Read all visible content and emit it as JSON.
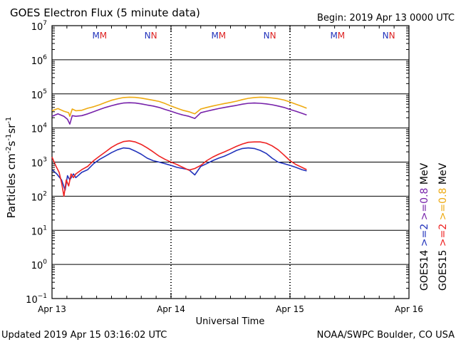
{
  "chart_data": {
    "type": "line",
    "title": "GOES Electron Flux (5 minute data)",
    "begin": "Begin: 2019 Apr 13 0000 UTC",
    "xlabel": "Universal Time",
    "ylabel_parts": [
      "Particles cm",
      "-2",
      "s",
      "-1",
      "sr",
      "-1"
    ],
    "footer_left": "Updated 2019 Apr 15 03:16:02 UTC",
    "footer_right": "NOAA/SWPC Boulder, CO USA",
    "y_scale": "log",
    "ylim": [
      0.1,
      10000000
    ],
    "y_ticks": [
      {
        "base": "10",
        "exp": "7",
        "value": 10000000
      },
      {
        "base": "10",
        "exp": "6",
        "value": 1000000
      },
      {
        "base": "10",
        "exp": "5",
        "value": 100000
      },
      {
        "base": "10",
        "exp": "4",
        "value": 10000
      },
      {
        "base": "10",
        "exp": "3",
        "value": 1000
      },
      {
        "base": "10",
        "exp": "2",
        "value": 100
      },
      {
        "base": "10",
        "exp": "1",
        "value": 10
      },
      {
        "base": "10",
        "exp": "0",
        "value": 1
      },
      {
        "base": "10",
        "exp": "−1",
        "value": 0.1
      }
    ],
    "x_range_days": [
      0,
      3
    ],
    "x_ticks": [
      {
        "label": "Apr 13",
        "day": 0
      },
      {
        "label": "Apr 14",
        "day": 1
      },
      {
        "label": "Apr 15",
        "day": 2
      },
      {
        "label": "Apr 16",
        "day": 3
      }
    ],
    "threshold": 1000,
    "day_markers": [
      {
        "day": 0.4,
        "letters": [
          {
            "text": "M",
            "color": "#2233bb"
          },
          {
            "text": "M",
            "color": "#dd2222"
          }
        ]
      },
      {
        "day": 0.83,
        "letters": [
          {
            "text": "N",
            "color": "#2233bb"
          },
          {
            "text": "N",
            "color": "#dd2222"
          }
        ]
      },
      {
        "day": 1.4,
        "letters": [
          {
            "text": "M",
            "color": "#2233bb"
          },
          {
            "text": "M",
            "color": "#dd2222"
          }
        ]
      },
      {
        "day": 1.83,
        "letters": [
          {
            "text": "N",
            "color": "#2233bb"
          },
          {
            "text": "N",
            "color": "#dd2222"
          }
        ]
      },
      {
        "day": 2.4,
        "letters": [
          {
            "text": "M",
            "color": "#2233bb"
          },
          {
            "text": "M",
            "color": "#dd2222"
          }
        ]
      },
      {
        "day": 2.83,
        "letters": [
          {
            "text": "N",
            "color": "#2233bb"
          },
          {
            "text": "N",
            "color": "#dd2222"
          }
        ]
      }
    ],
    "legend": [
      {
        "parts": [
          {
            "text": "GOES14",
            "color": "#000000"
          },
          {
            "text": " ",
            "color": "#000000"
          },
          {
            "text": ">=2",
            "color": "#2233bb"
          },
          {
            "text": " ",
            "color": "#000000"
          },
          {
            "text": ">=0.8",
            "color": "#7722aa"
          },
          {
            "text": " MeV",
            "color": "#000000"
          }
        ]
      },
      {
        "parts": [
          {
            "text": "GOES15",
            "color": "#000000"
          },
          {
            "text": " ",
            "color": "#000000"
          },
          {
            "text": ">=2",
            "color": "#ee2222"
          },
          {
            "text": " ",
            "color": "#000000"
          },
          {
            "text": ">=0.8",
            "color": "#eeaa11"
          },
          {
            "text": " MeV",
            "color": "#000000"
          }
        ]
      }
    ],
    "series": [
      {
        "color": "#eeaa11",
        "x": [
          0.0,
          0.05,
          0.1,
          0.14,
          0.15,
          0.17,
          0.2,
          0.25,
          0.3,
          0.35,
          0.4,
          0.45,
          0.5,
          0.55,
          0.6,
          0.65,
          0.7,
          0.75,
          0.8,
          0.85,
          0.9,
          0.95,
          1.0,
          1.05,
          1.1,
          1.15,
          1.2,
          1.25,
          1.3,
          1.35,
          1.4,
          1.45,
          1.5,
          1.55,
          1.6,
          1.65,
          1.7,
          1.75,
          1.8,
          1.85,
          1.9,
          1.95,
          2.0,
          2.05,
          2.1,
          2.14
        ],
        "y": [
          32000,
          37000,
          31000,
          28000,
          22000,
          36000,
          32000,
          33000,
          38000,
          42000,
          48000,
          56000,
          65000,
          72000,
          78000,
          80000,
          79000,
          75000,
          70000,
          65000,
          60000,
          52000,
          44000,
          38000,
          33000,
          30000,
          26000,
          36000,
          40000,
          44000,
          48000,
          52000,
          56000,
          61000,
          68000,
          74000,
          78000,
          80000,
          79000,
          76000,
          72000,
          66000,
          58000,
          50000,
          43000,
          38000
        ]
      },
      {
        "color": "#7722aa",
        "x": [
          0.0,
          0.05,
          0.1,
          0.13,
          0.15,
          0.17,
          0.2,
          0.25,
          0.3,
          0.35,
          0.4,
          0.45,
          0.5,
          0.55,
          0.6,
          0.65,
          0.7,
          0.75,
          0.8,
          0.85,
          0.9,
          0.95,
          1.0,
          1.05,
          1.1,
          1.15,
          1.2,
          1.25,
          1.3,
          1.35,
          1.4,
          1.45,
          1.5,
          1.55,
          1.6,
          1.65,
          1.7,
          1.75,
          1.8,
          1.85,
          1.9,
          1.95,
          2.0,
          2.05,
          2.1,
          2.14
        ],
        "y": [
          22000,
          26000,
          22000,
          18000,
          13000,
          23000,
          22000,
          23000,
          26000,
          30000,
          35000,
          40000,
          45000,
          50000,
          54000,
          55000,
          54000,
          51000,
          47000,
          44000,
          40000,
          35000,
          31000,
          27000,
          24000,
          22000,
          19000,
          28000,
          31000,
          34000,
          37000,
          40000,
          43000,
          46000,
          50000,
          53000,
          54000,
          53000,
          51000,
          48000,
          44000,
          40000,
          35000,
          31000,
          27000,
          24000
        ]
      },
      {
        "color": "#2233bb",
        "x": [
          0.0,
          0.04,
          0.08,
          0.11,
          0.13,
          0.15,
          0.18,
          0.2,
          0.25,
          0.3,
          0.35,
          0.4,
          0.45,
          0.5,
          0.55,
          0.6,
          0.65,
          0.7,
          0.75,
          0.8,
          0.85,
          0.9,
          0.95,
          1.0,
          1.05,
          1.1,
          1.15,
          1.2,
          1.25,
          1.3,
          1.35,
          1.4,
          1.45,
          1.5,
          1.55,
          1.6,
          1.65,
          1.7,
          1.75,
          1.8,
          1.85,
          1.9,
          1.95,
          2.0,
          2.05,
          2.1,
          2.14
        ],
        "y": [
          600,
          450,
          300,
          150,
          400,
          300,
          450,
          350,
          500,
          600,
          900,
          1200,
          1500,
          1900,
          2300,
          2600,
          2500,
          2100,
          1700,
          1300,
          1100,
          1000,
          900,
          800,
          700,
          650,
          600,
          420,
          750,
          900,
          1100,
          1300,
          1500,
          1800,
          2200,
          2500,
          2600,
          2500,
          2200,
          1800,
          1300,
          1000,
          900,
          800,
          700,
          600,
          550
        ]
      },
      {
        "color": "#ee2222",
        "x": [
          0.0,
          0.03,
          0.06,
          0.08,
          0.1,
          0.12,
          0.14,
          0.16,
          0.18,
          0.2,
          0.25,
          0.3,
          0.35,
          0.4,
          0.45,
          0.5,
          0.55,
          0.6,
          0.65,
          0.7,
          0.75,
          0.8,
          0.85,
          0.9,
          0.95,
          1.0,
          1.05,
          1.1,
          1.15,
          1.2,
          1.25,
          1.3,
          1.35,
          1.4,
          1.45,
          1.5,
          1.55,
          1.6,
          1.65,
          1.7,
          1.75,
          1.8,
          1.85,
          1.9,
          1.95,
          2.0,
          2.05,
          2.1,
          2.14
        ],
        "y": [
          1400,
          800,
          500,
          250,
          100,
          300,
          200,
          450,
          350,
          450,
          600,
          750,
          1100,
          1500,
          2000,
          2700,
          3400,
          4000,
          4200,
          3900,
          3300,
          2600,
          2000,
          1500,
          1200,
          1000,
          850,
          700,
          580,
          650,
          800,
          1100,
          1400,
          1700,
          2000,
          2400,
          2900,
          3400,
          3800,
          3900,
          3900,
          3600,
          3000,
          2300,
          1600,
          1100,
          850,
          700,
          600
        ]
      }
    ]
  }
}
